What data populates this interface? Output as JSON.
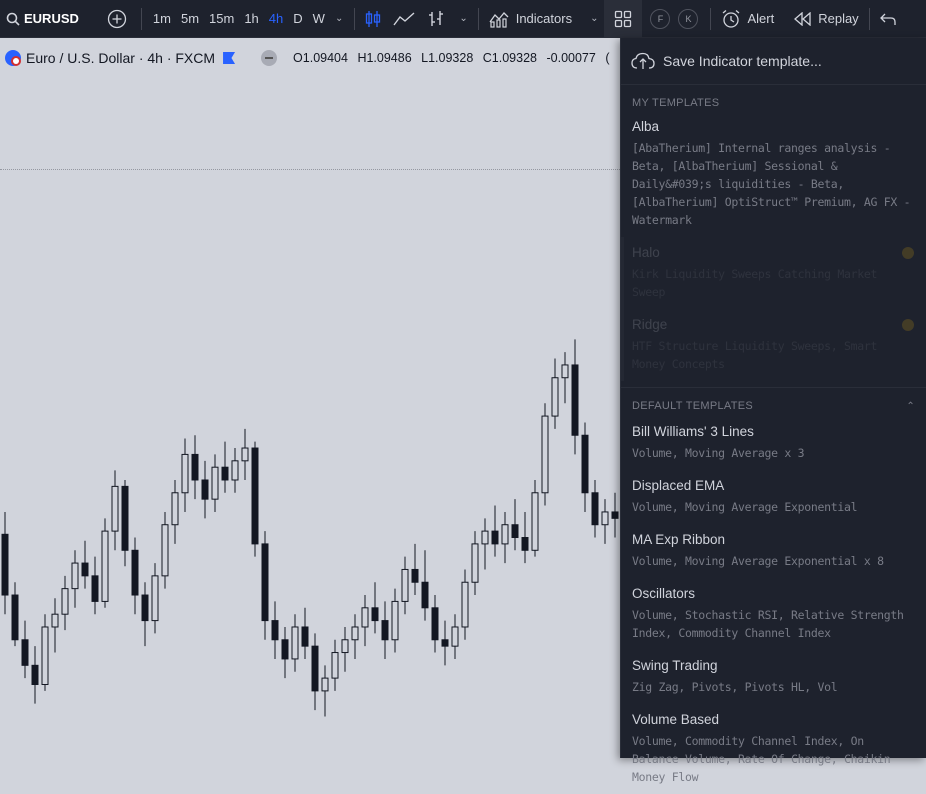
{
  "toolbar": {
    "symbol": "EURUSD",
    "timeframes": [
      "1m",
      "5m",
      "15m",
      "1h",
      "4h",
      "D",
      "W"
    ],
    "active_timeframe": "4h",
    "indicators_label": "Indicators",
    "badge_f": "F",
    "badge_k": "K",
    "alert_label": "Alert",
    "replay_label": "Replay"
  },
  "legend": {
    "title": "Euro / U.S. Dollar · 4h · FXCM",
    "open": "O1.09404",
    "high": "H1.09486",
    "low": "L1.09328",
    "close": "C1.09328",
    "change": "-0.00077",
    "trailing": "("
  },
  "panel": {
    "save_label": "Save Indicator template...",
    "my_templates_title": "MY TEMPLATES",
    "my_templates": [
      {
        "name": "Alba",
        "desc": "[AbaTherium] Internal ranges analysis - Beta, [AlbaTherium] Sessional & Daily&#039;s liquidities - Beta, [AlbaTherium] OptiStruct™ Premium, AG FX - Watermark"
      },
      {
        "name": "Halo",
        "desc": "Kirk Liquidity Sweeps Catching Market Sweep"
      },
      {
        "name": "Ridge",
        "desc": "HTF Structure Liquidity Sweeps, Smart Money Concepts"
      }
    ],
    "default_templates_title": "DEFAULT TEMPLATES",
    "default_templates": [
      {
        "name": "Bill Williams' 3 Lines",
        "desc": "Volume, Moving Average x 3"
      },
      {
        "name": "Displaced EMA",
        "desc": "Volume, Moving Average Exponential"
      },
      {
        "name": "MA Exp Ribbon",
        "desc": "Volume, Moving Average Exponential x 8"
      },
      {
        "name": "Oscillators",
        "desc": "Volume, Stochastic RSI, Relative Strength Index, Commodity Channel Index"
      },
      {
        "name": "Swing Trading",
        "desc": "Zig Zag, Pivots, Pivots HL, Vol"
      },
      {
        "name": "Volume Based",
        "desc": "Volume, Commodity Channel Index, On Balance Volume, Rate Of Change, Chaikin Money Flow"
      }
    ]
  },
  "colors": {
    "accent": "#2962ff",
    "panel_bg": "#1e222d",
    "chart_bg": "#d1d4dc",
    "candle_down": "#131722",
    "candle_up": "#d1d4dc"
  },
  "chart_candles": [
    [
      1.0905,
      1.0912,
      1.088,
      1.0886
    ],
    [
      1.0886,
      1.089,
      1.087,
      1.0872
    ],
    [
      1.0872,
      1.0878,
      1.086,
      1.0864
    ],
    [
      1.0864,
      1.087,
      1.0852,
      1.0858
    ],
    [
      1.0858,
      1.088,
      1.0856,
      1.0876
    ],
    [
      1.0876,
      1.0885,
      1.0868,
      1.088
    ],
    [
      1.088,
      1.0892,
      1.0875,
      1.0888
    ],
    [
      1.0888,
      1.09,
      1.0882,
      1.0896
    ],
    [
      1.0896,
      1.0903,
      1.0888,
      1.0892
    ],
    [
      1.0892,
      1.0898,
      1.088,
      1.0884
    ],
    [
      1.0884,
      1.091,
      1.0882,
      1.0906
    ],
    [
      1.0906,
      1.0925,
      1.09,
      1.092
    ],
    [
      1.092,
      1.0922,
      1.0895,
      1.09
    ],
    [
      1.09,
      1.0904,
      1.088,
      1.0886
    ],
    [
      1.0886,
      1.089,
      1.087,
      1.0878
    ],
    [
      1.0878,
      1.0896,
      1.0874,
      1.0892
    ],
    [
      1.0892,
      1.0912,
      1.0888,
      1.0908
    ],
    [
      1.0908,
      1.0922,
      1.0902,
      1.0918
    ],
    [
      1.0918,
      1.0935,
      1.0912,
      1.093
    ],
    [
      1.093,
      1.0936,
      1.0916,
      1.0922
    ],
    [
      1.0922,
      1.0928,
      1.091,
      1.0916
    ],
    [
      1.0916,
      1.093,
      1.0912,
      1.0926
    ],
    [
      1.0926,
      1.0934,
      1.0918,
      1.0922
    ],
    [
      1.0922,
      1.0932,
      1.0918,
      1.0928
    ],
    [
      1.0928,
      1.0938,
      1.0922,
      1.0932
    ],
    [
      1.0932,
      1.0934,
      1.0898,
      1.0902
    ],
    [
      1.0902,
      1.0906,
      1.0872,
      1.0878
    ],
    [
      1.0878,
      1.0884,
      1.0866,
      1.0872
    ],
    [
      1.0872,
      1.0876,
      1.086,
      1.0866
    ],
    [
      1.0866,
      1.088,
      1.0862,
      1.0876
    ],
    [
      1.0876,
      1.0882,
      1.0866,
      1.087
    ],
    [
      1.087,
      1.0874,
      1.085,
      1.0856
    ],
    [
      1.0856,
      1.0864,
      1.0848,
      1.086
    ],
    [
      1.086,
      1.0872,
      1.0856,
      1.0868
    ],
    [
      1.0868,
      1.0876,
      1.0862,
      1.0872
    ],
    [
      1.0872,
      1.088,
      1.0866,
      1.0876
    ],
    [
      1.0876,
      1.0886,
      1.087,
      1.0882
    ],
    [
      1.0882,
      1.089,
      1.0874,
      1.0878
    ],
    [
      1.0878,
      1.0884,
      1.0866,
      1.0872
    ],
    [
      1.0872,
      1.0888,
      1.0868,
      1.0884
    ],
    [
      1.0884,
      1.0898,
      1.088,
      1.0894
    ],
    [
      1.0894,
      1.0902,
      1.0886,
      1.089
    ],
    [
      1.089,
      1.09,
      1.0878,
      1.0882
    ],
    [
      1.0882,
      1.0886,
      1.0868,
      1.0872
    ],
    [
      1.0872,
      1.0878,
      1.0864,
      1.087
    ],
    [
      1.087,
      1.088,
      1.0866,
      1.0876
    ],
    [
      1.0876,
      1.0894,
      1.0872,
      1.089
    ],
    [
      1.089,
      1.0906,
      1.0886,
      1.0902
    ],
    [
      1.0902,
      1.091,
      1.0894,
      1.0906
    ],
    [
      1.0906,
      1.0914,
      1.0898,
      1.0902
    ],
    [
      1.0902,
      1.0912,
      1.0896,
      1.0908
    ],
    [
      1.0908,
      1.0916,
      1.09,
      1.0904
    ],
    [
      1.0904,
      1.0912,
      1.0896,
      1.09
    ],
    [
      1.09,
      1.0922,
      1.0898,
      1.0918
    ],
    [
      1.0918,
      1.0946,
      1.0914,
      1.0942
    ],
    [
      1.0942,
      1.096,
      1.0938,
      1.0954
    ],
    [
      1.0954,
      1.0962,
      1.0946,
      1.0958
    ],
    [
      1.0958,
      1.0966,
      1.093,
      1.0936
    ],
    [
      1.0936,
      1.094,
      1.0912,
      1.0918
    ],
    [
      1.0918,
      1.0922,
      1.0904,
      1.0908
    ],
    [
      1.0908,
      1.0916,
      1.0902,
      1.0912
    ],
    [
      1.0912,
      1.0918,
      1.0904,
      1.091
    ]
  ]
}
